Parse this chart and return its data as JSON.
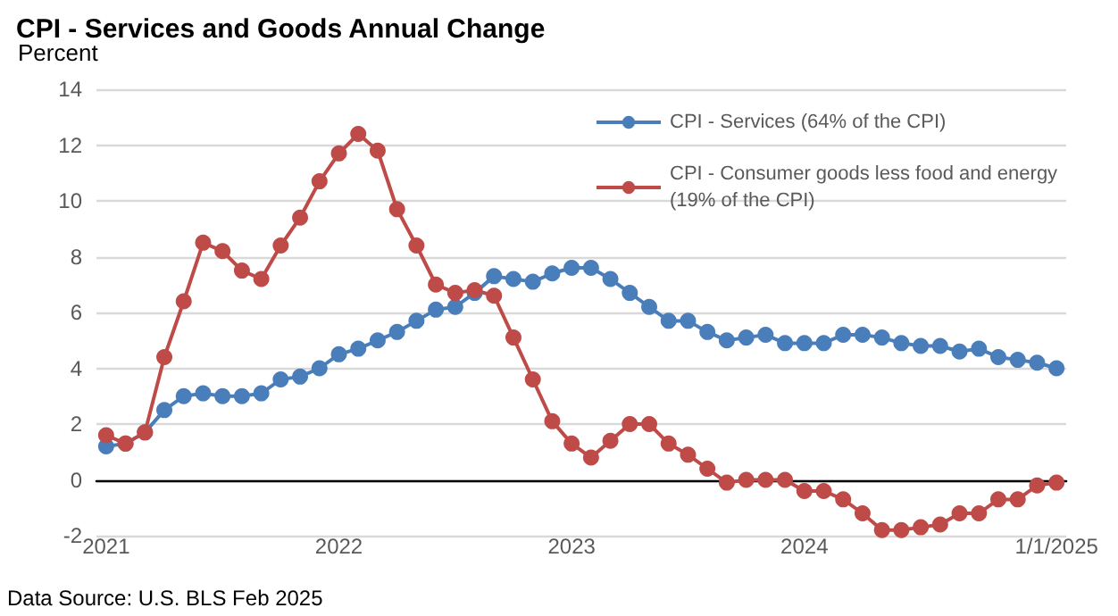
{
  "chart_data": {
    "type": "line",
    "title": "CPI - Services and Goods Annual Change",
    "ylabel": "Percent",
    "annotations": [
      "Data Source: U.S. BLS Feb 2025"
    ],
    "categories": [
      "2021",
      null,
      null,
      null,
      null,
      null,
      null,
      null,
      null,
      null,
      null,
      null,
      "2022",
      null,
      null,
      null,
      null,
      null,
      null,
      null,
      null,
      null,
      null,
      null,
      "2023",
      null,
      null,
      null,
      null,
      null,
      null,
      null,
      null,
      null,
      null,
      null,
      "2024",
      null,
      null,
      null,
      null,
      null,
      null,
      null,
      null,
      null,
      null,
      null,
      null,
      "1/1/2025"
    ],
    "series": [
      {
        "name": "CPI - Services (64% of the CPI)",
        "color": "#4a7ebb",
        "values": [
          1.2,
          1.3,
          1.7,
          2.5,
          3.0,
          3.1,
          3.0,
          3.0,
          3.1,
          3.6,
          3.7,
          4.0,
          4.5,
          4.7,
          5.0,
          5.3,
          5.7,
          6.1,
          6.2,
          6.7,
          7.3,
          7.2,
          7.1,
          7.4,
          7.6,
          7.6,
          7.2,
          6.7,
          6.2,
          5.7,
          5.7,
          5.3,
          5.0,
          5.1,
          5.2,
          4.9,
          4.9,
          4.9,
          5.2,
          5.2,
          5.1,
          4.9,
          4.8,
          4.8,
          4.6,
          4.7,
          4.4,
          4.3,
          4.2,
          4.0
        ]
      },
      {
        "name": "CPI - Consumer goods less food and energy\n(19% of the CPI)",
        "color": "#be4b48",
        "values": [
          1.6,
          1.3,
          1.7,
          4.4,
          6.4,
          8.5,
          8.2,
          7.5,
          7.2,
          8.4,
          9.4,
          10.7,
          11.7,
          12.4,
          11.8,
          9.7,
          8.4,
          7.0,
          6.7,
          6.8,
          6.6,
          5.1,
          3.6,
          2.1,
          1.3,
          0.8,
          1.4,
          2.0,
          2.0,
          1.3,
          0.9,
          0.4,
          -0.1,
          0.0,
          0.0,
          0.0,
          -0.4,
          -0.4,
          -0.7,
          -1.2,
          -1.8,
          -1.8,
          -1.7,
          -1.6,
          -1.2,
          -1.2,
          -0.7,
          -0.7,
          -0.2,
          -0.1
        ]
      }
    ],
    "ylim": [
      -2,
      14
    ],
    "yticks": [
      -2,
      0,
      2,
      4,
      6,
      8,
      10,
      12,
      14
    ],
    "grid": "y",
    "legend": "top right",
    "marker": "circle",
    "line_style": "solid"
  }
}
